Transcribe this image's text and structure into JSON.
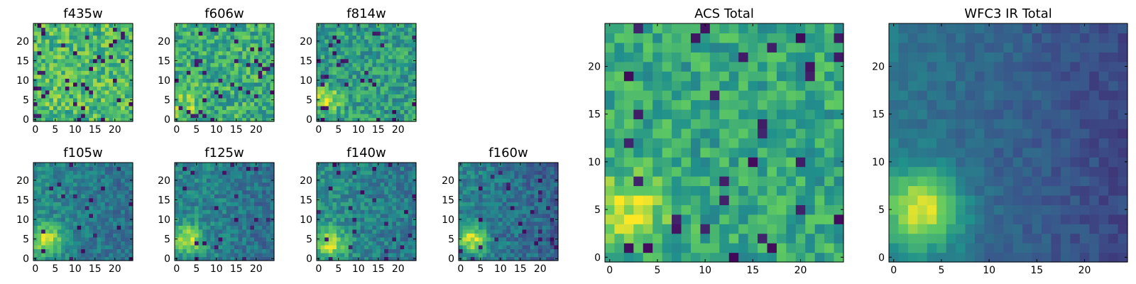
{
  "figure": {
    "grid_size": 25
  },
  "colormap": {
    "name": "viridis",
    "stops": [
      "#440154",
      "#3b528b",
      "#21918c",
      "#5ec962",
      "#fde725"
    ]
  },
  "chart_data": [
    {
      "id": "f435w",
      "type": "heatmap",
      "title": "f435w",
      "xticks": [
        "0",
        "5",
        "10",
        "15",
        "20"
      ],
      "yticks": [
        "0",
        "5",
        "10",
        "15",
        "20"
      ],
      "xlim": [
        0,
        25
      ],
      "ylim": [
        0,
        25
      ],
      "base": 0.68,
      "noise": 0.2,
      "dark_prob": 0.06,
      "seed": 11,
      "source": {
        "cx": 3,
        "cy": 5,
        "sigma": 2.2,
        "amp": 0.05
      },
      "gradient": {
        "dir": "none",
        "amp": 0
      }
    },
    {
      "id": "f606w",
      "type": "heatmap",
      "title": "f606w",
      "xticks": [
        "0",
        "5",
        "10",
        "15",
        "20"
      ],
      "yticks": [
        "0",
        "5",
        "10",
        "15",
        "20"
      ],
      "xlim": [
        0,
        25
      ],
      "ylim": [
        0,
        25
      ],
      "base": 0.62,
      "noise": 0.2,
      "dark_prob": 0.05,
      "seed": 23,
      "source": {
        "cx": 2,
        "cy": 4,
        "sigma": 2.6,
        "amp": 0.22
      },
      "gradient": {
        "dir": "none",
        "amp": 0
      }
    },
    {
      "id": "f814w",
      "type": "heatmap",
      "title": "f814w",
      "xticks": [
        "0",
        "5",
        "10",
        "15",
        "20"
      ],
      "yticks": [
        "0",
        "5",
        "10",
        "15",
        "20"
      ],
      "xlim": [
        0,
        25
      ],
      "ylim": [
        0,
        25
      ],
      "base": 0.55,
      "noise": 0.18,
      "dark_prob": 0.05,
      "seed": 37,
      "source": {
        "cx": 2,
        "cy": 5,
        "sigma": 2.2,
        "amp": 0.4
      },
      "gradient": {
        "dir": "none",
        "amp": 0
      }
    },
    {
      "id": "f105w",
      "type": "heatmap",
      "title": "f105w",
      "xticks": [
        "0",
        "5",
        "10",
        "15",
        "20"
      ],
      "yticks": [
        "0",
        "5",
        "10",
        "15",
        "20"
      ],
      "xlim": [
        0,
        25
      ],
      "ylim": [
        0,
        25
      ],
      "base": 0.48,
      "noise": 0.12,
      "dark_prob": 0.03,
      "seed": 41,
      "source": {
        "cx": 3,
        "cy": 5,
        "sigma": 2.6,
        "amp": 0.48
      },
      "gradient": {
        "dir": "right",
        "amp": 0.12
      }
    },
    {
      "id": "f125w",
      "type": "heatmap",
      "title": "f125w",
      "xticks": [
        "0",
        "5",
        "10",
        "15",
        "20"
      ],
      "yticks": [
        "0",
        "5",
        "10",
        "15",
        "20"
      ],
      "xlim": [
        0,
        25
      ],
      "ylim": [
        0,
        25
      ],
      "base": 0.47,
      "noise": 0.13,
      "dark_prob": 0.04,
      "seed": 53,
      "source": {
        "cx": 3,
        "cy": 5,
        "sigma": 2.6,
        "amp": 0.45
      },
      "gradient": {
        "dir": "right",
        "amp": 0.1
      }
    },
    {
      "id": "f140w",
      "type": "heatmap",
      "title": "f140w",
      "xticks": [
        "0",
        "5",
        "10",
        "15",
        "20"
      ],
      "yticks": [
        "0",
        "5",
        "10",
        "15",
        "20"
      ],
      "xlim": [
        0,
        25
      ],
      "ylim": [
        0,
        25
      ],
      "base": 0.5,
      "noise": 0.13,
      "dark_prob": 0.03,
      "seed": 67,
      "source": {
        "cx": 3,
        "cy": 4,
        "sigma": 2.6,
        "amp": 0.42
      },
      "gradient": {
        "dir": "right",
        "amp": 0.1
      }
    },
    {
      "id": "f160w",
      "type": "heatmap",
      "title": "f160w",
      "xticks": [
        "0",
        "5",
        "10",
        "15",
        "20"
      ],
      "yticks": [
        "0",
        "5",
        "10",
        "15",
        "20"
      ],
      "xlim": [
        0,
        25
      ],
      "ylim": [
        0,
        25
      ],
      "base": 0.45,
      "noise": 0.13,
      "dark_prob": 0.04,
      "seed": 79,
      "source": {
        "cx": 3,
        "cy": 5,
        "sigma": 2.4,
        "amp": 0.5
      },
      "gradient": {
        "dir": "right",
        "amp": 0.14
      }
    },
    {
      "id": "acs",
      "type": "heatmap",
      "title": "ACS Total",
      "xticks": [
        "0",
        "5",
        "10",
        "15",
        "20"
      ],
      "yticks": [
        "0",
        "5",
        "10",
        "15",
        "20"
      ],
      "xlim": [
        0,
        25
      ],
      "ylim": [
        0,
        25
      ],
      "base": 0.6,
      "noise": 0.16,
      "dark_prob": 0.05,
      "seed": 97,
      "source": {
        "cx": 2,
        "cy": 5,
        "sigma": 2.5,
        "amp": 0.33
      },
      "gradient": {
        "dir": "none",
        "amp": 0
      }
    },
    {
      "id": "wfc3",
      "type": "heatmap",
      "title": "WFC3 IR Total",
      "xticks": [
        "0",
        "5",
        "10",
        "15",
        "20"
      ],
      "yticks": [
        "0",
        "5",
        "10",
        "15",
        "20"
      ],
      "xlim": [
        0,
        25
      ],
      "ylim": [
        0,
        25
      ],
      "base": 0.4,
      "noise": 0.06,
      "dark_prob": 0.0,
      "seed": 131,
      "source": {
        "cx": 3,
        "cy": 5,
        "sigma": 2.8,
        "amp": 0.58
      },
      "gradient": {
        "dir": "right",
        "amp": 0.18
      }
    }
  ]
}
